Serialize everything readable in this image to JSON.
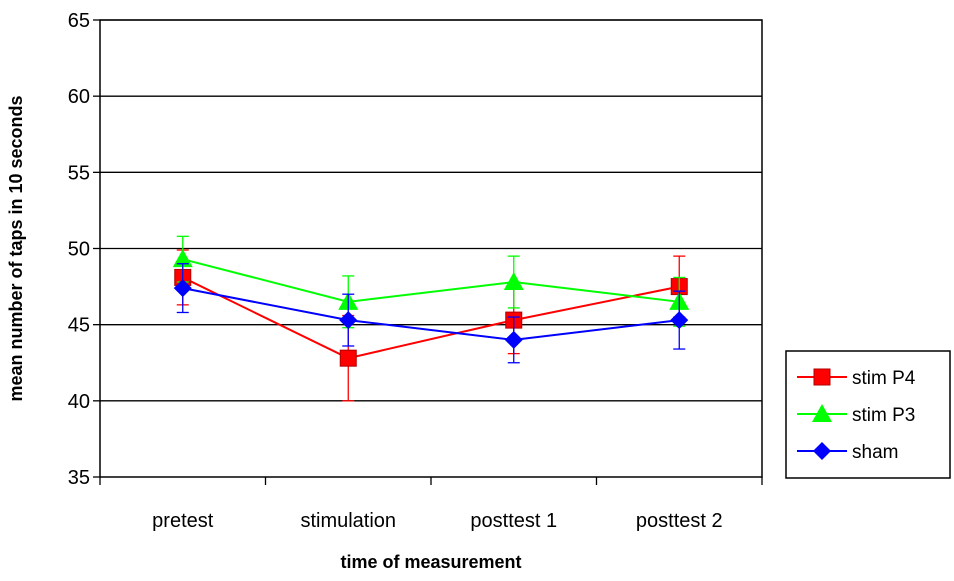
{
  "chart_data": {
    "type": "line",
    "title": "",
    "xlabel": "time of measurement",
    "ylabel": "mean number of taps in 10 seconds",
    "categories": [
      "pretest",
      "stimulation",
      "posttest 1",
      "posttest 2"
    ],
    "ylim": [
      35,
      65
    ],
    "yticks": [
      35,
      40,
      45,
      50,
      55,
      60,
      65
    ],
    "grid": true,
    "legend_position": "right",
    "series": [
      {
        "name": "stim P4",
        "color": "#ff0000",
        "marker": "square",
        "values": [
          48.1,
          42.8,
          45.3,
          47.5
        ],
        "err_low": [
          46.3,
          40.0,
          43.1,
          45.5
        ],
        "err_high": [
          49.9,
          45.6,
          47.5,
          49.5
        ]
      },
      {
        "name": "stim P3",
        "color": "#00ff00",
        "marker": "triangle",
        "values": [
          49.3,
          46.5,
          47.8,
          46.5
        ],
        "err_low": [
          47.8,
          44.8,
          46.1,
          44.9
        ],
        "err_high": [
          50.8,
          48.2,
          49.5,
          48.1
        ]
      },
      {
        "name": "sham",
        "color": "#0000ff",
        "marker": "diamond",
        "values": [
          47.4,
          45.3,
          44.0,
          45.3
        ],
        "err_low": [
          45.8,
          43.6,
          42.5,
          43.4
        ],
        "err_high": [
          49.0,
          47.0,
          45.5,
          47.2
        ]
      }
    ]
  }
}
